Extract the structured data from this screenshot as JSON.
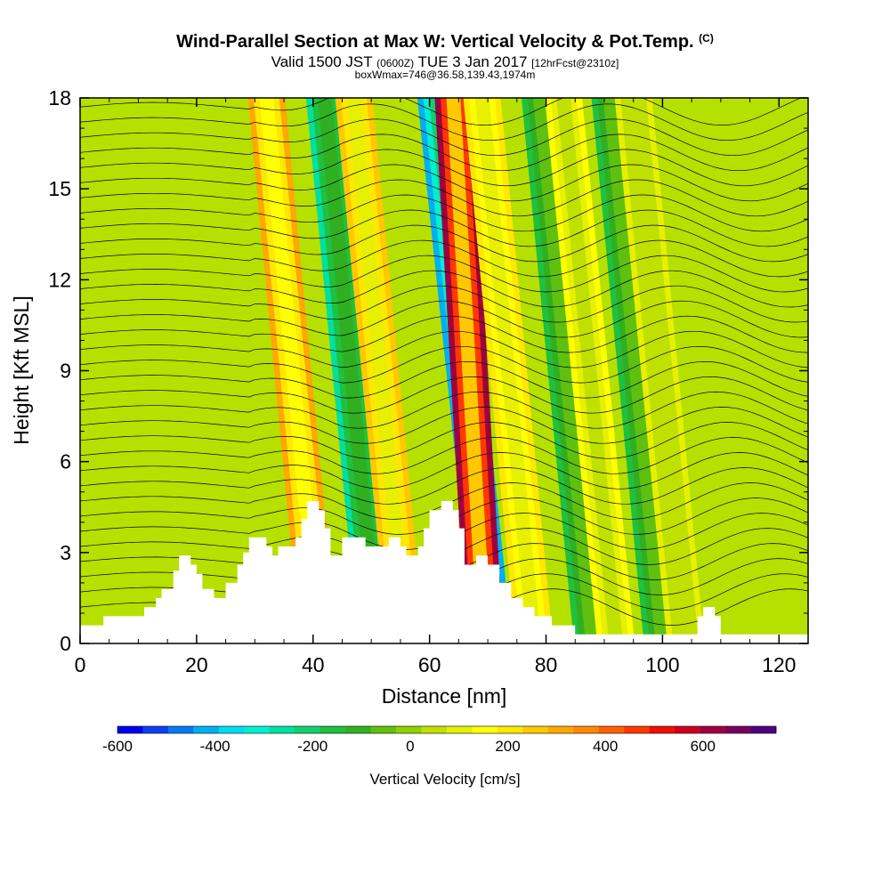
{
  "header": {
    "title": "Wind-Parallel Section at Max W: Vertical Velocity & Pot.Temp.",
    "title_mark": "(C)",
    "valid_prefix": "Valid 1500 JST",
    "valid_utc": "(0600Z)",
    "valid_date": "TUE 3 Jan 2017",
    "forecast": "[12hrFcst@2310z]",
    "box_info": "boxWmax=746@36.58,139.43,1974m"
  },
  "chart_data": {
    "type": "heatmap",
    "xlabel": "Distance [nm]",
    "ylabel": "Height [Kft MSL]",
    "xlim": [
      0,
      125
    ],
    "ylim": [
      0,
      18
    ],
    "x_ticks": [
      0,
      20,
      40,
      60,
      80,
      100,
      120
    ],
    "y_ticks": [
      0,
      3,
      6,
      9,
      12,
      15,
      18
    ],
    "colorbar": {
      "title": "Vertical Velocity [cm/s]",
      "range": [
        -600,
        750
      ],
      "tick_values": [
        -600,
        -400,
        -200,
        0,
        200,
        400,
        600
      ],
      "tick_labels": [
        "-600",
        "-400",
        "-200",
        "0",
        "200",
        "400",
        "600"
      ],
      "colors": [
        "#0000f0",
        "#0a40f0",
        "#0a78f0",
        "#00b0f0",
        "#00dcf0",
        "#00f0d0",
        "#00e0a0",
        "#10d070",
        "#20c040",
        "#30b020",
        "#60c010",
        "#90d000",
        "#c0e000",
        "#e6f000",
        "#ffff00",
        "#ffe800",
        "#ffc800",
        "#ffa800",
        "#ff8800",
        "#ff6000",
        "#ff3800",
        "#ee1000",
        "#cc0020",
        "#a00040",
        "#780060",
        "#500080"
      ]
    },
    "terrain_height_kft": [
      {
        "x": 0,
        "y": 0.6
      },
      {
        "x": 4,
        "y": 0.6
      },
      {
        "x": 4,
        "y": 0.9
      },
      {
        "x": 11,
        "y": 0.9
      },
      {
        "x": 11,
        "y": 1.2
      },
      {
        "x": 13,
        "y": 1.2
      },
      {
        "x": 13,
        "y": 1.5
      },
      {
        "x": 14,
        "y": 1.5
      },
      {
        "x": 14,
        "y": 1.8
      },
      {
        "x": 16,
        "y": 1.8
      },
      {
        "x": 16,
        "y": 2.4
      },
      {
        "x": 17,
        "y": 2.4
      },
      {
        "x": 17,
        "y": 2.9
      },
      {
        "x": 19,
        "y": 2.9
      },
      {
        "x": 19,
        "y": 2.6
      },
      {
        "x": 20,
        "y": 2.6
      },
      {
        "x": 20,
        "y": 2.3
      },
      {
        "x": 21,
        "y": 2.3
      },
      {
        "x": 21,
        "y": 1.8
      },
      {
        "x": 23,
        "y": 1.8
      },
      {
        "x": 23,
        "y": 1.5
      },
      {
        "x": 25,
        "y": 1.5
      },
      {
        "x": 25,
        "y": 2.0
      },
      {
        "x": 27,
        "y": 2.0
      },
      {
        "x": 27,
        "y": 2.6
      },
      {
        "x": 28,
        "y": 2.6
      },
      {
        "x": 28,
        "y": 3.0
      },
      {
        "x": 29,
        "y": 3.0
      },
      {
        "x": 29,
        "y": 3.5
      },
      {
        "x": 32,
        "y": 3.5
      },
      {
        "x": 32,
        "y": 3.2
      },
      {
        "x": 33,
        "y": 3.2
      },
      {
        "x": 33,
        "y": 2.9
      },
      {
        "x": 34,
        "y": 2.9
      },
      {
        "x": 34,
        "y": 3.2
      },
      {
        "x": 37,
        "y": 3.2
      },
      {
        "x": 37,
        "y": 3.5
      },
      {
        "x": 38,
        "y": 3.5
      },
      {
        "x": 38,
        "y": 4.1
      },
      {
        "x": 39,
        "y": 4.1
      },
      {
        "x": 39,
        "y": 4.7
      },
      {
        "x": 41,
        "y": 4.7
      },
      {
        "x": 41,
        "y": 4.4
      },
      {
        "x": 42,
        "y": 4.4
      },
      {
        "x": 42,
        "y": 3.8
      },
      {
        "x": 43,
        "y": 3.8
      },
      {
        "x": 43,
        "y": 2.9
      },
      {
        "x": 45,
        "y": 2.9
      },
      {
        "x": 45,
        "y": 3.5
      },
      {
        "x": 49,
        "y": 3.5
      },
      {
        "x": 49,
        "y": 3.2
      },
      {
        "x": 53,
        "y": 3.2
      },
      {
        "x": 53,
        "y": 3.5
      },
      {
        "x": 55,
        "y": 3.5
      },
      {
        "x": 55,
        "y": 3.2
      },
      {
        "x": 56,
        "y": 3.2
      },
      {
        "x": 56,
        "y": 2.9
      },
      {
        "x": 58,
        "y": 2.9
      },
      {
        "x": 58,
        "y": 3.2
      },
      {
        "x": 59,
        "y": 3.2
      },
      {
        "x": 59,
        "y": 3.8
      },
      {
        "x": 60,
        "y": 3.8
      },
      {
        "x": 60,
        "y": 4.4
      },
      {
        "x": 62,
        "y": 4.4
      },
      {
        "x": 62,
        "y": 4.7
      },
      {
        "x": 64,
        "y": 4.7
      },
      {
        "x": 64,
        "y": 4.4
      },
      {
        "x": 65,
        "y": 4.4
      },
      {
        "x": 65,
        "y": 3.8
      },
      {
        "x": 66,
        "y": 3.8
      },
      {
        "x": 66,
        "y": 2.6
      },
      {
        "x": 68,
        "y": 2.6
      },
      {
        "x": 68,
        "y": 2.9
      },
      {
        "x": 70,
        "y": 2.9
      },
      {
        "x": 70,
        "y": 2.6
      },
      {
        "x": 72,
        "y": 2.6
      },
      {
        "x": 72,
        "y": 2.0
      },
      {
        "x": 74,
        "y": 2.0
      },
      {
        "x": 74,
        "y": 1.5
      },
      {
        "x": 76,
        "y": 1.5
      },
      {
        "x": 76,
        "y": 1.2
      },
      {
        "x": 78,
        "y": 1.2
      },
      {
        "x": 78,
        "y": 0.9
      },
      {
        "x": 81,
        "y": 0.9
      },
      {
        "x": 81,
        "y": 0.6
      },
      {
        "x": 85,
        "y": 0.6
      },
      {
        "x": 85,
        "y": 0.3
      },
      {
        "x": 106,
        "y": 0.3
      },
      {
        "x": 106,
        "y": 0.9
      },
      {
        "x": 107,
        "y": 0.9
      },
      {
        "x": 107,
        "y": 1.2
      },
      {
        "x": 109,
        "y": 1.2
      },
      {
        "x": 109,
        "y": 0.9
      },
      {
        "x": 110,
        "y": 0.9
      },
      {
        "x": 110,
        "y": 0.3
      },
      {
        "x": 125,
        "y": 0.3
      }
    ],
    "vertical_velocity_bands_cm_s": [
      {
        "x_at_0kft": 41,
        "slope_nm_per_kft": -0.5,
        "value": 300
      },
      {
        "x_at_0kft": 51,
        "slope_nm_per_kft": -0.5,
        "value": -250
      },
      {
        "x_at_0kft": 56,
        "slope_nm_per_kft": -0.5,
        "value": 250
      },
      {
        "x_at_0kft": 71,
        "slope_nm_per_kft": -0.55,
        "value": -420
      },
      {
        "x_at_0kft": 69.5,
        "slope_nm_per_kft": -0.3,
        "value": 620
      },
      {
        "x_at_0kft": 78,
        "slope_nm_per_kft": -0.5,
        "value": 200
      },
      {
        "x_at_0kft": 88,
        "slope_nm_per_kft": -0.5,
        "value": -150
      },
      {
        "x_at_0kft": 92,
        "slope_nm_per_kft": -0.5,
        "value": 150
      },
      {
        "x_at_0kft": 100,
        "slope_nm_per_kft": -0.5,
        "value": -150
      },
      {
        "x_at_0kft": 104,
        "slope_nm_per_kft": -0.5,
        "value": 100
      }
    ]
  }
}
